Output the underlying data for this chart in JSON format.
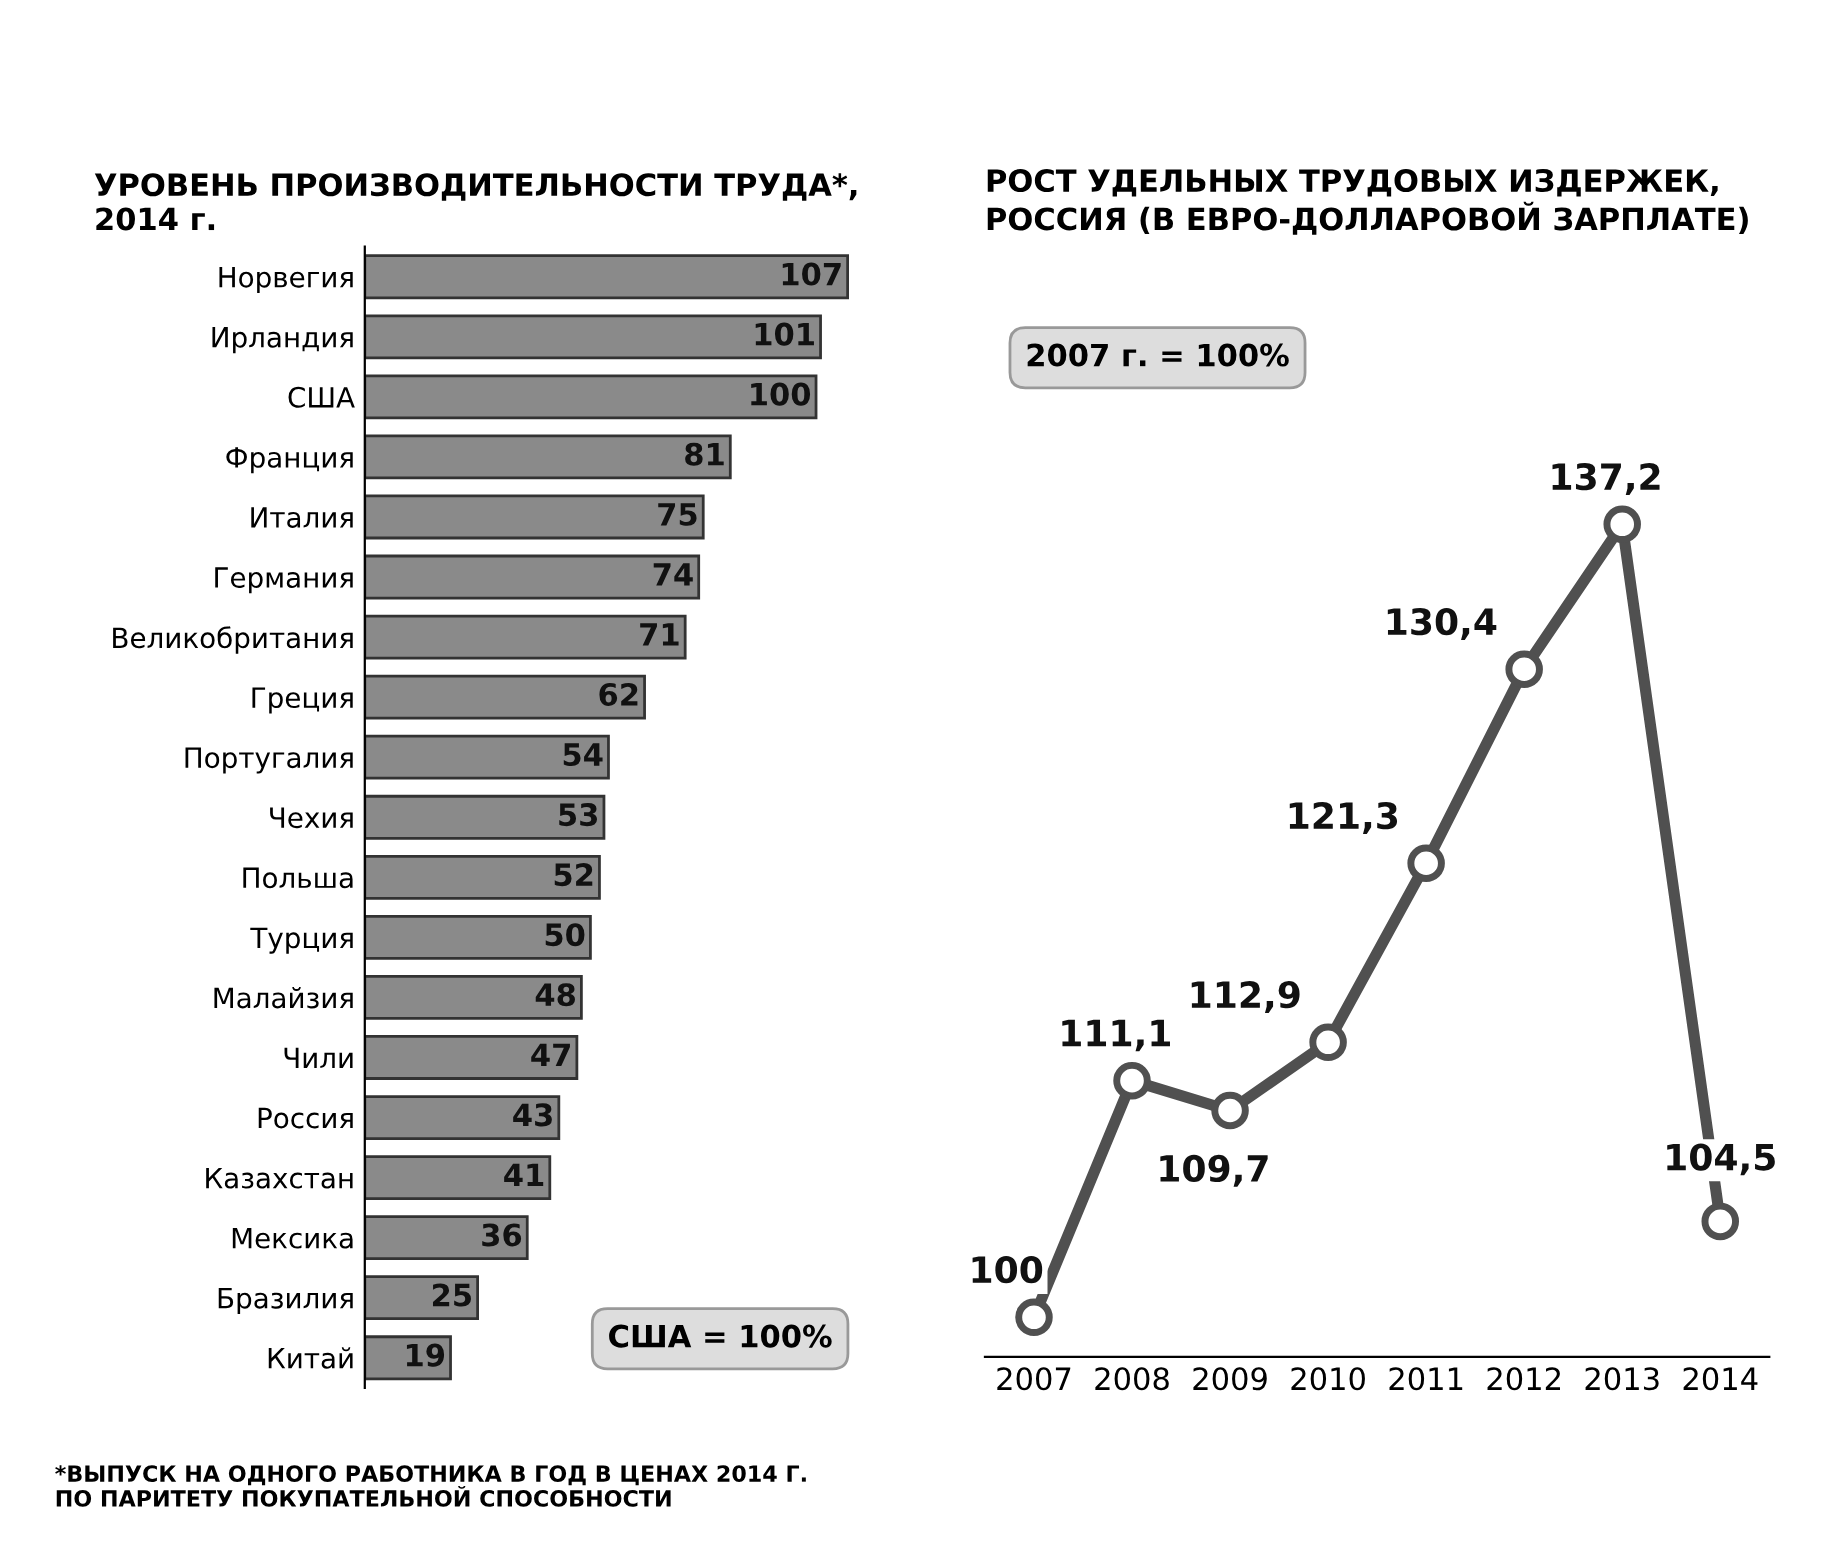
{
  "chart_data": [
    {
      "type": "bar",
      "orientation": "horizontal",
      "title": "УРОВЕНЬ ПРОИЗВОДИТЕЛЬНОСТИ ТРУДА*,\n2014 г.",
      "categories": [
        "Норвегия",
        "Ирландия",
        "США",
        "Франция",
        "Италия",
        "Германия",
        "Великобритания",
        "Греция",
        "Португалия",
        "Чехия",
        "Польша",
        "Турция",
        "Малайзия",
        "Чили",
        "Россия",
        "Казахстан",
        "Мексика",
        "Бразилия",
        "Китай"
      ],
      "values": [
        107,
        101,
        100,
        81,
        75,
        74,
        71,
        62,
        54,
        53,
        52,
        50,
        48,
        47,
        43,
        41,
        36,
        25,
        19
      ],
      "color": "#8a8a8a",
      "data_labels": true,
      "tick_labels": "y",
      "annotations": [
        "США = 100%",
        "*ВЫПУСК НА ОДНОГО РАБОТНИКА В ГОД В ЦЕНАХ 2014 Г.\nПО ПАРИТЕТУ ПОКУПАТЕЛЬНОЙ СПОСОБНОСТИ"
      ]
    },
    {
      "type": "line",
      "title": "РОСТ УДЕЛЬНЫХ ТРУДОВЫХ ИЗДЕРЖЕК,\nРОССИЯ (В ЕВРО-ДОЛЛАРОВОЙ ЗАРПЛАТЕ)",
      "categories": [
        "2007",
        "2008",
        "2009",
        "2010",
        "2011",
        "2012",
        "2013",
        "2014"
      ],
      "values": [
        100,
        111.1,
        109.7,
        112.9,
        121.3,
        130.4,
        137.2,
        104.5
      ],
      "value_labels": [
        "100",
        "111,1",
        "109,7",
        "112,9",
        "121,3",
        "130,4",
        "137,2",
        "104,5"
      ],
      "color": "#505050",
      "marker": "circle",
      "line_style": "solid",
      "tick_labels": "x",
      "annotations": [
        "2007 г. = 100%"
      ]
    }
  ]
}
